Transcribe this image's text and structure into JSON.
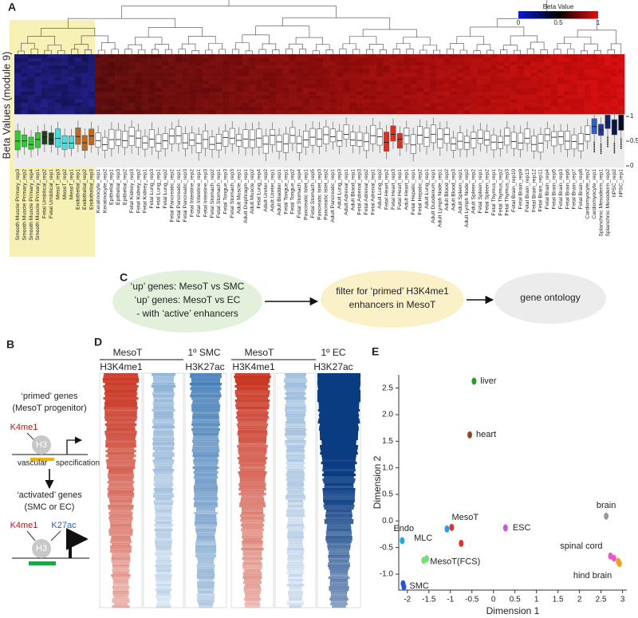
{
  "panel_labels": {
    "a": "A",
    "b": "B",
    "c": "C",
    "d": "D",
    "e": "E"
  },
  "panel_a": {
    "colorbar_title": "Beta Value",
    "colorbar_ticks": [
      0,
      0.5,
      1
    ],
    "y_title": "Beta Values (module 9)",
    "box_axis_ticks": [
      1,
      0.5,
      0
    ],
    "samples": [
      "Smooth Muscle Primary_rep3",
      "Smooth Muscle Primary_rep2",
      "Smooth Muscle Primary_rep4",
      "Smooth Muscle Primary_rep1",
      "Fetal Umbilical_rep2",
      "Fetal Umbilical_rep1",
      "MesoT_rep3",
      "MesoT_rep2",
      "MesoT_rep1",
      "Endothelial_rep1",
      "Endothelial_rep2",
      "Endothelial_rep3",
      "Keratinocyte_rep1",
      "Keratinocyte_rep2",
      "Epithelial_rep1",
      "Epithelial_rep3",
      "Epithelial_rep2",
      "Fetal Kidney_rep3",
      "Fetal Kidney_rep2",
      "Fetal Kidney_rep1",
      "Fetal Lung_rep3",
      "Fetal Lung_rep1",
      "Fetal Lung_rep2",
      "Fetal Pancreatic_rep2",
      "Fetal Pancreatic_rep1",
      "Fetal Pancreatic_rep3",
      "Fetal Intestine_rep2",
      "Fetal Intestine_rep1",
      "Fetal Intestine_rep3",
      "Fetal Stomach_rep2",
      "Fetal Stomach_rep1",
      "Fetal Tongue_rep3",
      "Fetal Stomach_rep3",
      "Adult Muscle_rep1",
      "Adult Diaphragm_rep1",
      "Adult Muscle_rep2",
      "Fetal Lung_rep4",
      "Adult Ureter_rep2",
      "Adult Ureter_rep1",
      "Adult Bladder_rep1",
      "Fetal Tongue_rep1",
      "Fetal Tongue_rep2",
      "Fetal Stomach_rep4",
      "Pancreatic Islet_rep1",
      "Fetal Stomach_rep5",
      "Pancreatic Islet_rep3",
      "Pancreatic Islet_rep2",
      "Adult Pancreatic_rep1",
      "Adult Lung_rep3",
      "Adult Adrenal_rep1",
      "Adult Blood_rep1",
      "Fetal Adrenal_rep3",
      "Fetal Adrenal_rep2",
      "Fetal Adrenal_rep1",
      "Adult Lung_rep2",
      "Fetal Heart_rep2",
      "Fetal Heart_rep3",
      "Fetal Heart_rep1",
      "Adult Heart_rep1",
      "Fetal Hepatic_rep1",
      "Fetal Hepatic_rep2",
      "Adult Lung_rep1",
      "Adult Duodenum_rep1",
      "Adult Lymph Node_rep1",
      "Adult Blood_rep2",
      "Adult Blood_rep3",
      "Adult Spleen_rep1",
      "Adult Lymph Node_rep2",
      "Adult Spleen_rep2",
      "Fetal Spleen_rep1",
      "Fetal Spleen_rep2",
      "Fetal Thymus_rep1",
      "Fetal Thymus_rep2",
      "Fetal Thymus_rep3",
      "Fetal Brain_rep10",
      "Fetal Brain_rep9",
      "Fetal Brain_rep13",
      "Fetal Brain_rep12",
      "Fetal Brain_rep11",
      "Fetal Brain_rep4",
      "Fetal Brain_rep5",
      "Fetal Brain_rep3",
      "Fetal Brain_rep6",
      "Fetal Brain_rep7",
      "Fetal Brain_rep8",
      "Cardiomyocyte_rep2",
      "Cardiomyocyte_rep1",
      "Splanchnic Mesoderm_rep1",
      "Splanchnic Mesoderm_rep2",
      "hPSC_rep2",
      "hPSC_rep1"
    ],
    "box_colors": [
      "#33cc33",
      "#33cc33",
      "#33cc33",
      "#33cc33",
      "#1f3d1f",
      "#1f3d1f",
      "#44e0e0",
      "#44e0e0",
      "#44e0e0",
      "#c06a1e",
      "#c06a1e",
      "#c06a1e",
      "#fff",
      "#fff",
      "#fff",
      "#fff",
      "#fff",
      "#fff",
      "#fff",
      "#fff",
      "#fff",
      "#fff",
      "#fff",
      "#fff",
      "#fff",
      "#fff",
      "#fff",
      "#fff",
      "#fff",
      "#fff",
      "#fff",
      "#fff",
      "#fff",
      "#fff",
      "#fff",
      "#fff",
      "#fff",
      "#fff",
      "#fff",
      "#fff",
      "#fff",
      "#fff",
      "#fff",
      "#fff",
      "#fff",
      "#fff",
      "#fff",
      "#fff",
      "#fff",
      "#fff",
      "#fff",
      "#fff",
      "#fff",
      "#fff",
      "#fff",
      "#e03020",
      "#e03020",
      "#e03020",
      "#fff",
      "#fff",
      "#fff",
      "#fff",
      "#fff",
      "#fff",
      "#fff",
      "#fff",
      "#fff",
      "#fff",
      "#fff",
      "#fff",
      "#fff",
      "#fff",
      "#fff",
      "#fff",
      "#fff",
      "#fff",
      "#fff",
      "#fff",
      "#fff",
      "#fff",
      "#fff",
      "#fff",
      "#fff",
      "#fff",
      "#fff",
      "#fff",
      "#2a5fd0",
      "#1c3a9a",
      "#0f2470",
      "#0a1545",
      "#050a25"
    ]
  },
  "panel_b": {
    "primed_title": "‘primed’ genes",
    "primed_sub": "(MesoT progenitor)",
    "primed_mark": "K4me1",
    "primed_histone": "H3",
    "transition": [
      "vascular",
      "specification"
    ],
    "activated_title": "‘activated’ genes",
    "activated_sub": "(SMC or EC)",
    "activated_mark_1": "K4me1",
    "activated_mark_2": "K27ac",
    "activated_histone": "H3"
  },
  "panel_c": {
    "steps": [
      {
        "lines": [
          "‘up’ genes:  MesoT vs SMC",
          "‘up’ genes: MesoT vs EC",
          "- with ‘active’ enhancers"
        ]
      },
      {
        "lines": [
          "filter for ‘primed’ H3K4me1",
          "enhancers in MesoT"
        ]
      },
      {
        "lines": [
          "gene ontology"
        ]
      }
    ]
  },
  "panel_d": {
    "groups": [
      "MesoT",
      "1º SMC",
      "MesoT",
      "1º EC"
    ],
    "marks": [
      "H3K4me1",
      "H3K27ac",
      "H3K4me1",
      "H3K27ac"
    ]
  },
  "panel_e": {
    "type": "scatter",
    "xlabel": "Dimension 1",
    "ylabel": "Dimension 2",
    "xlim": [
      -2.2,
      3.1
    ],
    "ylim": [
      -1.3,
      2.75
    ],
    "xticks": [
      -2,
      -1.5,
      -1,
      -0.5,
      0,
      0.5,
      1,
      1.5,
      2,
      2.5,
      3
    ],
    "yticks": [
      {
        "value": -1,
        "label": "-1.0"
      },
      -0.5,
      {
        "value": 0,
        "label": "0.0"
      },
      0.5,
      {
        "value": 1,
        "label": "1.0"
      },
      1.5,
      {
        "value": 2,
        "label": "2.0"
      },
      2.5
    ],
    "series": [
      {
        "name": "liver",
        "color": "#2a9a2a",
        "x": [
          -0.45
        ],
        "y": [
          2.63
        ]
      },
      {
        "name": "heart",
        "color": "#8b4a22",
        "x": [
          -0.55
        ],
        "y": [
          1.62
        ]
      },
      {
        "name": "brain",
        "color": "#9a9a9a",
        "x": [
          2.62
        ],
        "y": [
          0.09
        ]
      },
      {
        "name": "ESC",
        "color": "#cc55dd",
        "x": [
          0.28
        ],
        "y": [
          -0.13
        ]
      },
      {
        "name": "MesoT",
        "color": "#3399ee",
        "x": [
          -1.08
        ],
        "y": [
          -0.15
        ]
      },
      {
        "name": "MLC",
        "color": "#dd3333",
        "x": [
          -0.97,
          -0.75
        ],
        "y": [
          -0.12,
          -0.42
        ]
      },
      {
        "name": "Endo",
        "color": "#22aadd",
        "x": [
          -2.12
        ],
        "y": [
          -0.37
        ]
      },
      {
        "name": "MesoT(FCS)",
        "color": "#77dd77",
        "x": [
          -1.62,
          -1.55
        ],
        "y": [
          -0.74,
          -0.71
        ]
      },
      {
        "name": "SMC",
        "color": "#2255dd",
        "x": [
          -2.1,
          -2.08
        ],
        "y": [
          -1.18,
          -1.24
        ]
      },
      {
        "name": "spinal cord",
        "color": "#ee55cc",
        "x": [
          2.72,
          2.8
        ],
        "y": [
          -0.66,
          -0.7
        ]
      },
      {
        "name": "hind brain",
        "color": "#f0a020",
        "x": [
          2.9,
          2.93
        ],
        "y": [
          -0.76,
          -0.8
        ]
      }
    ]
  }
}
